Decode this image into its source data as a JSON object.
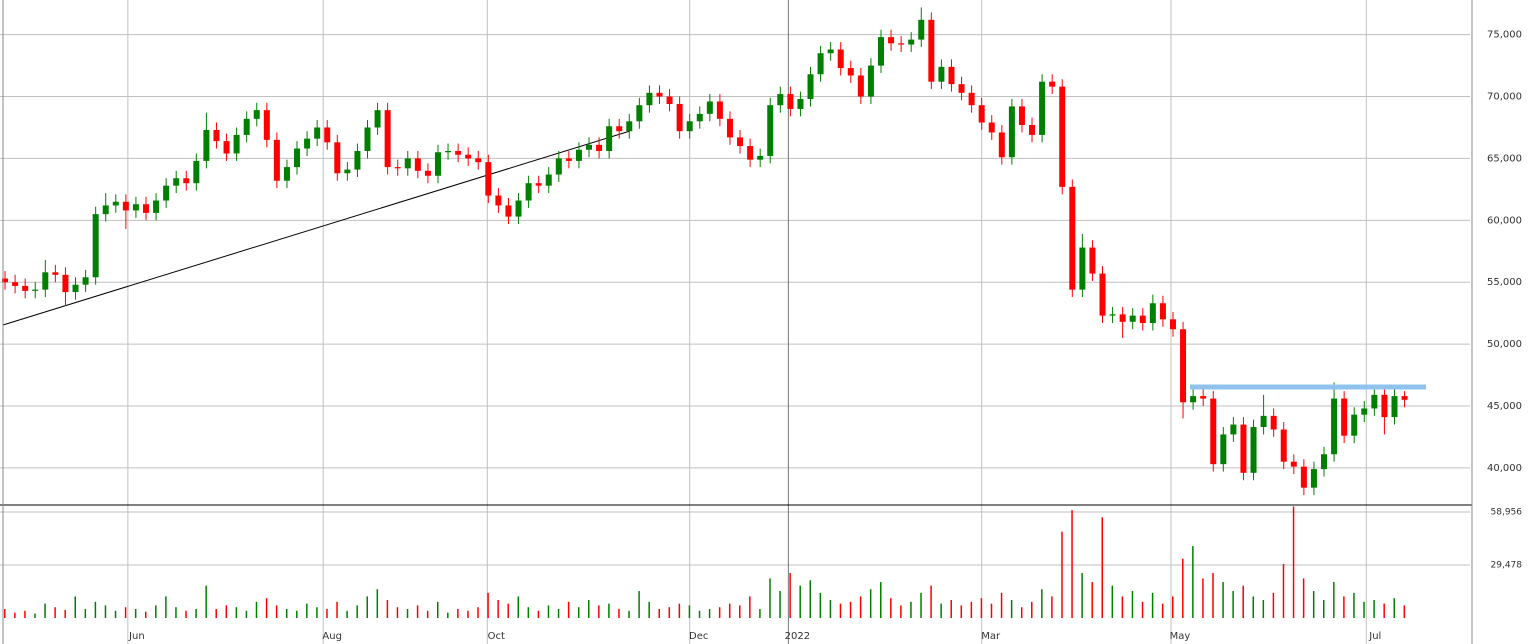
{
  "chart_data": {
    "type": "candlestick",
    "xlim": [
      -0.5,
      145.5
    ],
    "xticks": [
      {
        "value": 12.2,
        "label": "Jun"
      },
      {
        "value": 31.6,
        "label": "Aug"
      },
      {
        "value": 47.9,
        "label": "Oct"
      },
      {
        "value": 68,
        "label": "Dec"
      },
      {
        "value": 77.8,
        "label": "2022"
      },
      {
        "value": 97,
        "label": "Mar"
      },
      {
        "value": 115.8,
        "label": "May"
      },
      {
        "value": 135.2,
        "label": "Jul"
      }
    ],
    "ylim": [
      37000,
      77800
    ],
    "yticks": [
      {
        "value": 40000,
        "label": "40,000"
      },
      {
        "value": 45000,
        "label": "45,000"
      },
      {
        "value": 50000,
        "label": "50,000"
      },
      {
        "value": 55000,
        "label": "55,000"
      },
      {
        "value": 60000,
        "label": "60,000"
      },
      {
        "value": 65000,
        "label": "65,000"
      },
      {
        "value": 70000,
        "label": "70,000"
      },
      {
        "value": 75000,
        "label": "75,000"
      }
    ],
    "y2lim": [
      0,
      62850
    ],
    "y2ticks": [
      {
        "value": 29478,
        "label": "29,478"
      },
      {
        "value": 58956,
        "label": "58,956"
      }
    ],
    "grid": true,
    "up_color": "#008000",
    "down_color": "#ff0000",
    "open": [
      55300,
      55000,
      54700,
      54300,
      54400,
      55800,
      55600,
      54200,
      54800,
      55400,
      60500,
      61200,
      61500,
      60800,
      61300,
      60600,
      61600,
      62800,
      63400,
      63000,
      64800,
      67300,
      66400,
      65400,
      66900,
      68200,
      68900,
      66500,
      63200,
      64300,
      65800,
      66600,
      67500,
      66300,
      63800,
      64100,
      65600,
      67500,
      68900,
      64300,
      64200,
      65000,
      64000,
      63600,
      65500,
      65600,
      65300,
      65000,
      64700,
      62000,
      61200,
      60300,
      61600,
      63000,
      62800,
      63700,
      65000,
      64800,
      65700,
      66100,
      65600,
      67600,
      67200,
      68000,
      69300,
      70300,
      70000,
      69400,
      67200,
      68000,
      68600,
      69600,
      68200,
      66700,
      66000,
      64900,
      65200,
      69300,
      70200,
      69000,
      69800,
      71800,
      73500,
      73800,
      72300,
      71700,
      70000,
      72500,
      74800,
      74300,
      74200,
      74600,
      76200,
      71200,
      72400,
      71000,
      70300,
      69300,
      67900,
      67100,
      65100,
      69200,
      67700,
      66900,
      71200,
      70800,
      62700,
      54400,
      57800,
      55700,
      52300,
      52400,
      51800,
      52300,
      51700,
      53300,
      52000,
      51200,
      45300,
      45800,
      45600,
      40300,
      42700,
      43500,
      39600,
      43300,
      44200,
      43100,
      40500,
      40100,
      38400,
      39900,
      41100,
      45600,
      42600,
      44300,
      44800,
      45900,
      44100,
      45800
    ],
    "high": [
      55900,
      55600,
      55300,
      55000,
      56800,
      56400,
      56200,
      55400,
      56000,
      61100,
      62200,
      62100,
      62100,
      61900,
      61900,
      62200,
      63400,
      64000,
      64000,
      65400,
      68700,
      67900,
      67000,
      67500,
      68800,
      69500,
      69500,
      67100,
      64900,
      66400,
      67200,
      68100,
      68100,
      66900,
      64700,
      66200,
      68100,
      69500,
      69500,
      64900,
      65600,
      65600,
      64600,
      66100,
      66200,
      66200,
      65900,
      65600,
      65300,
      62600,
      61800,
      62200,
      63600,
      63600,
      64300,
      65600,
      65600,
      66300,
      66700,
      66700,
      68200,
      68200,
      68600,
      69900,
      70900,
      70900,
      70600,
      70000,
      68600,
      69200,
      70200,
      70200,
      68800,
      67300,
      66600,
      65800,
      69900,
      70800,
      70800,
      70400,
      72400,
      74100,
      74400,
      74400,
      72900,
      72300,
      73100,
      75400,
      75400,
      74900,
      75200,
      77200,
      76800,
      73000,
      73000,
      71600,
      70900,
      69900,
      68500,
      67700,
      69800,
      69800,
      68300,
      71800,
      71800,
      71400,
      63300,
      58900,
      58400,
      56300,
      53000,
      53000,
      52900,
      52900,
      54000,
      53900,
      52600,
      51800,
      46700,
      46400,
      46200,
      43300,
      44100,
      44100,
      43900,
      45900,
      44800,
      43700,
      41100,
      40700,
      40500,
      41700,
      46900,
      46200,
      44900,
      45400,
      46500,
      46500,
      46400,
      46200
    ],
    "low": [
      54400,
      54100,
      53700,
      53700,
      53800,
      55000,
      53100,
      53600,
      54200,
      54800,
      59900,
      60600,
      59300,
      60200,
      60000,
      60000,
      61000,
      62200,
      62400,
      62400,
      64200,
      65800,
      64800,
      64800,
      66300,
      67600,
      65900,
      62600,
      62600,
      63700,
      65200,
      66000,
      65700,
      63200,
      63200,
      63500,
      65000,
      66900,
      63700,
      63600,
      63600,
      63400,
      63000,
      63000,
      64900,
      64700,
      64400,
      64100,
      61400,
      60600,
      59700,
      59700,
      61000,
      62200,
      62200,
      63100,
      64200,
      64200,
      65100,
      65000,
      65000,
      66600,
      66600,
      67400,
      68700,
      69400,
      68800,
      66600,
      66600,
      67400,
      68000,
      67600,
      66100,
      65400,
      64300,
      64300,
      64600,
      68700,
      68400,
      68400,
      69200,
      71200,
      72900,
      71700,
      71100,
      69400,
      69400,
      71900,
      73700,
      73600,
      73600,
      74000,
      70600,
      70600,
      70400,
      69700,
      68700,
      67300,
      66500,
      64500,
      64500,
      67100,
      66300,
      66300,
      70200,
      62100,
      53800,
      53800,
      55100,
      51700,
      51700,
      50500,
      51200,
      51100,
      51100,
      51400,
      50600,
      44000,
      44700,
      45000,
      39700,
      39700,
      42100,
      39000,
      39000,
      42700,
      42500,
      39900,
      39500,
      37800,
      37800,
      39300,
      40500,
      42000,
      42000,
      43700,
      44200,
      42700,
      43500,
      44900
    ],
    "close": [
      55000,
      54700,
      54300,
      54400,
      55800,
      55600,
      54200,
      54800,
      55400,
      60500,
      61200,
      61500,
      60800,
      61300,
      60600,
      61600,
      62800,
      63400,
      63000,
      64800,
      67300,
      66400,
      65400,
      66900,
      68200,
      68900,
      66500,
      63200,
      64300,
      65800,
      66600,
      67500,
      66300,
      63800,
      64100,
      65600,
      67500,
      68900,
      64300,
      64200,
      65000,
      64000,
      63600,
      65500,
      65600,
      65300,
      65000,
      64700,
      62000,
      61200,
      60300,
      61600,
      63000,
      62800,
      63700,
      65000,
      64800,
      65700,
      66100,
      65600,
      67600,
      67200,
      68000,
      69300,
      70300,
      70000,
      69400,
      67200,
      68000,
      68600,
      69600,
      68200,
      66700,
      66000,
      64900,
      65200,
      69300,
      70200,
      69000,
      69800,
      71800,
      73500,
      73800,
      72300,
      71700,
      70000,
      72500,
      74800,
      74300,
      74200,
      74600,
      76200,
      71200,
      72400,
      71000,
      70300,
      69300,
      67900,
      67100,
      65100,
      69200,
      67700,
      66900,
      71200,
      70800,
      62700,
      54400,
      57800,
      55700,
      52300,
      52400,
      51800,
      52300,
      51700,
      53300,
      52000,
      51200,
      45300,
      45800,
      45600,
      40300,
      42700,
      43500,
      39600,
      43300,
      44200,
      43100,
      40500,
      40100,
      38400,
      39900,
      41100,
      45600,
      42600,
      44300,
      44800,
      45900,
      44100,
      45800,
      45500
    ],
    "volume": [
      5000,
      3000,
      4000,
      2500,
      8000,
      6000,
      4500,
      12000,
      5000,
      9000,
      7000,
      4000,
      6000,
      5000,
      3500,
      7000,
      12000,
      6000,
      4000,
      5000,
      18000,
      5000,
      7000,
      6000,
      4000,
      9000,
      11000,
      7000,
      5000,
      4000,
      8000,
      6000,
      5000,
      9000,
      4000,
      7000,
      12000,
      16000,
      10000,
      6000,
      5000,
      7000,
      4000,
      9000,
      3000,
      5000,
      4000,
      6000,
      14000,
      10000,
      8000,
      12000,
      6000,
      4000,
      7000,
      5000,
      9000,
      6000,
      10000,
      7000,
      8000,
      5000,
      4000,
      15000,
      9000,
      5000,
      6000,
      8000,
      7000,
      4000,
      5000,
      6000,
      8000,
      7000,
      12000,
      5000,
      22000,
      15000,
      25000,
      18000,
      21000,
      14000,
      10000,
      8000,
      9000,
      12000,
      16000,
      20000,
      11000,
      7000,
      9000,
      14000,
      18000,
      8000,
      10000,
      7000,
      9000,
      11000,
      8000,
      14000,
      10000,
      6000,
      9000,
      16000,
      12000,
      48000,
      60000,
      25000,
      20000,
      56000,
      18000,
      12000,
      15000,
      9000,
      14000,
      8000,
      12000,
      33000,
      40000,
      22000,
      25000,
      20000,
      15000,
      18000,
      12000,
      10000,
      14000,
      30000,
      62000,
      22000,
      15000,
      10000,
      20000,
      12000,
      14000,
      9000,
      10000,
      8000,
      11000,
      7000
    ]
  }
}
